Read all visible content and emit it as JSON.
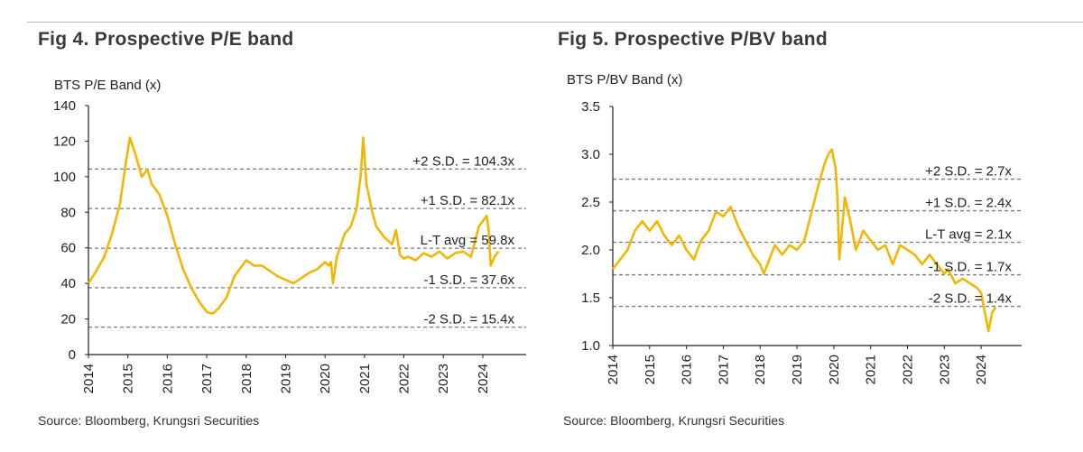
{
  "colors": {
    "line": "#F2B705",
    "axis": "#222222",
    "band": "#7a7a7a",
    "background": "#ffffff"
  },
  "chart_data": [
    {
      "type": "line",
      "title": "Fig 4.  Prospective P/E band",
      "ylabel": "BTS P/E Band (x)",
      "xlabel": "",
      "source": "Source: Bloomberg, Krungsri Securities",
      "ylim": [
        0,
        140
      ],
      "yticks": [
        0,
        20,
        40,
        60,
        80,
        100,
        120,
        140
      ],
      "xlim": [
        2014,
        2025.1
      ],
      "xticks": [
        "2014",
        "2015",
        "2016",
        "2017",
        "2018",
        "2019",
        "2020",
        "2021",
        "2022",
        "2023",
        "2024"
      ],
      "grid": false,
      "bands": [
        {
          "label": "+2 S.D. = 104.3x",
          "value": 104.3
        },
        {
          "label": "+1 S.D. = 82.1x",
          "value": 82.1
        },
        {
          "label": "L-T avg = 59.8x",
          "value": 59.8
        },
        {
          "label": "-1 S.D. = 37.6x",
          "value": 37.6
        },
        {
          "label": "-2 S.D. = 15.4x",
          "value": 15.4
        }
      ],
      "series": [
        {
          "name": "P/E",
          "x": [
            2014.0,
            2014.2,
            2014.4,
            2014.6,
            2014.8,
            2014.95,
            2015.05,
            2015.2,
            2015.35,
            2015.5,
            2015.6,
            2015.8,
            2016.0,
            2016.2,
            2016.4,
            2016.6,
            2016.8,
            2017.0,
            2017.15,
            2017.3,
            2017.5,
            2017.7,
            2017.9,
            2018.0,
            2018.2,
            2018.4,
            2018.6,
            2018.8,
            2019.0,
            2019.2,
            2019.4,
            2019.6,
            2019.8,
            2020.0,
            2020.1,
            2020.15,
            2020.2,
            2020.3,
            2020.5,
            2020.65,
            2020.8,
            2020.9,
            2020.97,
            2021.05,
            2021.2,
            2021.3,
            2021.5,
            2021.7,
            2021.8,
            2021.9,
            2022.0,
            2022.1,
            2022.3,
            2022.5,
            2022.7,
            2022.9,
            2023.1,
            2023.3,
            2023.5,
            2023.7,
            2023.9,
            2024.0,
            2024.1,
            2024.15,
            2024.2,
            2024.3,
            2024.4
          ],
          "values": [
            40,
            47,
            55,
            68,
            85,
            108,
            122,
            112,
            100,
            104,
            96,
            90,
            78,
            62,
            48,
            38,
            30,
            24,
            23,
            26,
            32,
            44,
            50,
            53,
            50,
            50,
            47,
            44,
            42,
            40,
            43,
            46,
            48,
            52,
            50,
            52,
            40,
            55,
            68,
            72,
            82,
            100,
            122,
            96,
            80,
            72,
            66,
            62,
            70,
            56,
            54,
            55,
            53,
            57,
            55,
            58,
            54,
            57,
            58,
            55,
            72,
            75,
            78,
            70,
            50,
            55,
            58
          ]
        }
      ]
    },
    {
      "type": "line",
      "title": "Fig 5. Prospective P/BV band",
      "ylabel": "BTS P/BV Band (x)",
      "xlabel": "",
      "source": "Source: Bloomberg, Krungsri Securities",
      "ylim": [
        1.0,
        3.5
      ],
      "yticks": [
        1.0,
        1.5,
        2.0,
        2.5,
        3.0,
        3.5
      ],
      "xlim": [
        2014,
        2025.1
      ],
      "xticks": [
        "2014",
        "2015",
        "2016",
        "2017",
        "2018",
        "2019",
        "2020",
        "2021",
        "2022",
        "2023",
        "2024"
      ],
      "grid": false,
      "bands": [
        {
          "label": "+2 S.D. = 2.7x",
          "value": 2.74
        },
        {
          "label": "+1 S.D. = 2.4x",
          "value": 2.41
        },
        {
          "label": "L-T avg = 2.1x",
          "value": 2.08
        },
        {
          "label": "-1 S.D. = 1.7x",
          "value": 1.74
        },
        {
          "label": "-2 S.D. = 1.4x",
          "value": 1.41
        }
      ],
      "series": [
        {
          "name": "P/BV",
          "x": [
            2014.0,
            2014.2,
            2014.4,
            2014.6,
            2014.8,
            2015.0,
            2015.2,
            2015.4,
            2015.6,
            2015.8,
            2016.0,
            2016.2,
            2016.4,
            2016.6,
            2016.8,
            2017.0,
            2017.2,
            2017.4,
            2017.6,
            2017.8,
            2018.0,
            2018.1,
            2018.2,
            2018.4,
            2018.6,
            2018.8,
            2019.0,
            2019.2,
            2019.4,
            2019.6,
            2019.75,
            2019.85,
            2019.95,
            2020.05,
            2020.1,
            2020.15,
            2020.3,
            2020.45,
            2020.6,
            2020.8,
            2021.0,
            2021.2,
            2021.4,
            2021.6,
            2021.8,
            2022.0,
            2022.2,
            2022.4,
            2022.6,
            2022.8,
            2023.0,
            2023.1,
            2023.3,
            2023.5,
            2023.7,
            2023.9,
            2024.0,
            2024.1,
            2024.2,
            2024.3,
            2024.4
          ],
          "values": [
            1.8,
            1.9,
            2.0,
            2.2,
            2.3,
            2.2,
            2.3,
            2.15,
            2.05,
            2.15,
            2.0,
            1.9,
            2.1,
            2.2,
            2.4,
            2.35,
            2.45,
            2.25,
            2.1,
            1.95,
            1.85,
            1.75,
            1.85,
            2.05,
            1.95,
            2.05,
            2.0,
            2.1,
            2.4,
            2.7,
            2.9,
            3.0,
            3.05,
            2.85,
            2.55,
            1.9,
            2.55,
            2.3,
            2.0,
            2.2,
            2.1,
            2.0,
            2.05,
            1.85,
            2.05,
            2.0,
            1.95,
            1.85,
            1.95,
            1.85,
            1.75,
            1.8,
            1.65,
            1.7,
            1.65,
            1.6,
            1.55,
            1.35,
            1.15,
            1.35,
            1.4
          ]
        }
      ]
    }
  ]
}
